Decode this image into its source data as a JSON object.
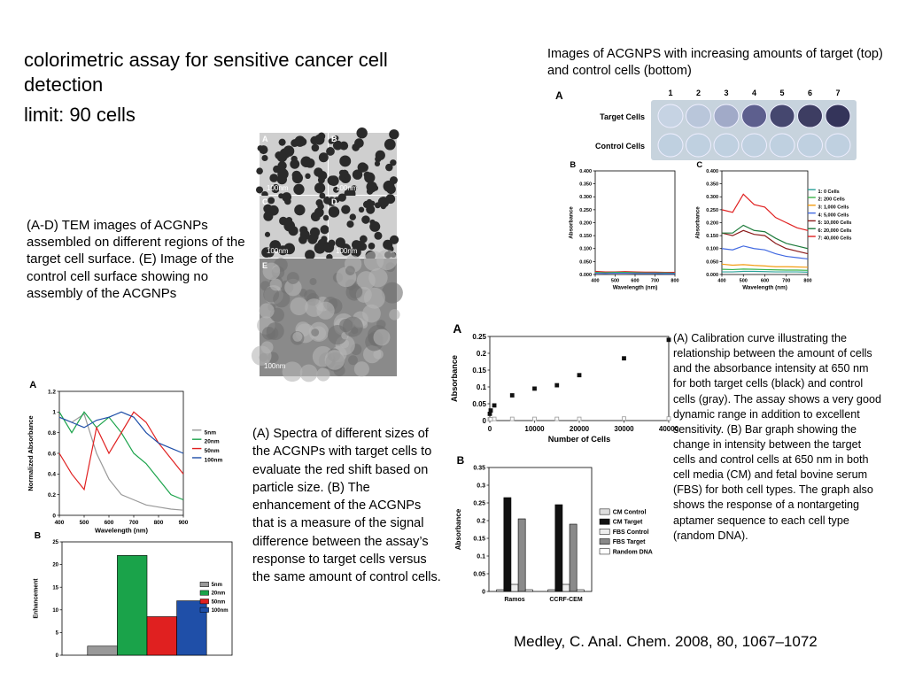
{
  "title": "colorimetric assay for sensitive cancer cell detection",
  "subtitle": "limit: 90 cells",
  "tem": {
    "caption": "(A-D) TEM images of ACGNPs assembled on different regions of the target cell surface. (E) Image of the control cell surface showing no assembly of the ACGNPs",
    "panels": [
      "A",
      "B",
      "C",
      "D",
      "E"
    ],
    "scale_label": "100nm"
  },
  "plate": {
    "caption": "Images of ACGNPS with increasing amounts of target (top) and control cells (bottom)",
    "panel": "A",
    "columns": [
      "1",
      "2",
      "3",
      "4",
      "5",
      "6",
      "7"
    ],
    "rows": [
      "Target Cells",
      "Control Cells"
    ]
  },
  "calibration_caption": "(A) Calibration curve illustrating the relationship between the amount of cells and the absorbance intensity at 650 nm for both target cells (black) and control cells (gray). The assay shows a very good dynamic range in addition to excellent sensitivity. (B) Bar graph showing the change in intensity between the target cells and control cells at 650 nm in both cell media (CM) and fetal bovine serum (FBS) for both cell types. The graph also shows the response of a nontargeting aptamer sequence to each cell type (random DNA).",
  "size_caption": "(A) Spectra of different sizes of the ACGNPs with target cells to evaluate the red shift based on particle size. (B) The enhancement of the ACGNPs that is a measure of the signal difference between the assay’s response to target cells versus the same amount of control cells.",
  "citation": "Medley, C. Anal. Chem. 2008, 80, 1067–1072",
  "chart_data": [
    {
      "type": "line",
      "panel": "B",
      "ylabel": "Absorbance",
      "xlabel": "Wavelength (nm)",
      "x": [
        400,
        450,
        500,
        550,
        600,
        650,
        700,
        750,
        800
      ],
      "xlim": [
        400,
        800
      ],
      "xticks": [
        400,
        500,
        600,
        700,
        800
      ],
      "ylim": [
        0,
        0.4
      ],
      "yticks": [
        {
          "value": 0,
          "label": "0.000"
        },
        {
          "value": 0.05,
          "label": "0.050"
        },
        {
          "value": 0.1,
          "label": "0.100"
        },
        {
          "value": 0.15,
          "label": "0.150"
        },
        {
          "value": 0.2,
          "label": "0.200"
        },
        {
          "value": 0.25,
          "label": "0.250"
        },
        {
          "value": 0.3,
          "label": "0.300"
        },
        {
          "value": 0.35,
          "label": "0.350"
        },
        {
          "value": 0.4,
          "label": "0.400"
        }
      ],
      "series": [
        {
          "color": "#e02020",
          "values": [
            0.012,
            0.01,
            0.01,
            0.011,
            0.01,
            0.009,
            0.009,
            0.008,
            0.008
          ]
        },
        {
          "color": "#3cb44b",
          "values": [
            0.008,
            0.007,
            0.008,
            0.008,
            0.007,
            0.006,
            0.006,
            0.006,
            0.005
          ]
        },
        {
          "color": "#4169e1",
          "values": [
            0.005,
            0.004,
            0.005,
            0.005,
            0.004,
            0.004,
            0.004,
            0.003,
            0.003
          ]
        }
      ]
    },
    {
      "type": "line",
      "panel": "C",
      "ylabel": "Absorbance",
      "xlabel": "Wavelength (nm)",
      "x": [
        400,
        450,
        500,
        550,
        600,
        650,
        700,
        750,
        800
      ],
      "xlim": [
        400,
        800
      ],
      "xticks": [
        400,
        500,
        600,
        700,
        800
      ],
      "ylim": [
        0,
        0.4
      ],
      "yticks": [
        {
          "value": 0,
          "label": "0.000"
        },
        {
          "value": 0.05,
          "label": "0.050"
        },
        {
          "value": 0.1,
          "label": "0.100"
        },
        {
          "value": 0.15,
          "label": "0.150"
        },
        {
          "value": 0.2,
          "label": "0.200"
        },
        {
          "value": 0.25,
          "label": "0.250"
        },
        {
          "value": 0.3,
          "label": "0.300"
        },
        {
          "value": 0.35,
          "label": "0.350"
        },
        {
          "value": 0.4,
          "label": "0.400"
        }
      ],
      "series": [
        {
          "name": "1: 0 Cells",
          "color": "#2aa198",
          "values": [
            0.01,
            0.01,
            0.012,
            0.012,
            0.011,
            0.01,
            0.01,
            0.01,
            0.009
          ]
        },
        {
          "name": "2: 200 Cells",
          "color": "#3cb44b",
          "values": [
            0.02,
            0.019,
            0.021,
            0.02,
            0.019,
            0.018,
            0.017,
            0.017,
            0.016
          ]
        },
        {
          "name": "3: 1,000 Cells",
          "color": "#f39c12",
          "values": [
            0.04,
            0.036,
            0.038,
            0.035,
            0.033,
            0.03,
            0.03,
            0.029,
            0.028
          ]
        },
        {
          "name": "4: 5,000 Cells",
          "color": "#4169e1",
          "values": [
            0.1,
            0.095,
            0.11,
            0.1,
            0.095,
            0.08,
            0.07,
            0.065,
            0.06
          ]
        },
        {
          "name": "5: 10,000 Cells",
          "color": "#8b1a1a",
          "values": [
            0.16,
            0.15,
            0.17,
            0.155,
            0.15,
            0.12,
            0.1,
            0.09,
            0.08
          ]
        },
        {
          "name": "6: 20,000 Cells",
          "color": "#1e7b3c",
          "values": [
            0.16,
            0.16,
            0.19,
            0.17,
            0.165,
            0.14,
            0.12,
            0.11,
            0.1
          ]
        },
        {
          "name": "7: 40,000 Cells",
          "color": "#e02020",
          "values": [
            0.25,
            0.24,
            0.31,
            0.27,
            0.26,
            0.22,
            0.2,
            0.18,
            0.17
          ]
        }
      ]
    },
    {
      "type": "scatter",
      "panel": "A",
      "ylabel": "Absorbance",
      "xlabel": "Number of Cells",
      "x": [
        0,
        200,
        1000,
        5000,
        10000,
        15000,
        20000,
        30000,
        40000
      ],
      "xlim": [
        0,
        40000
      ],
      "xticks": [
        0,
        10000,
        20000,
        30000,
        40000
      ],
      "ylim": [
        0,
        0.25
      ],
      "yticks": [
        0,
        0.05,
        0.1,
        0.15,
        0.2,
        0.25
      ],
      "series": [
        {
          "color": "#111111",
          "values": [
            0.02,
            0.03,
            0.045,
            0.075,
            0.095,
            0.105,
            0.135,
            0.185,
            0.24
          ]
        },
        {
          "color": "#999999",
          "values": [
            0.004,
            0.004,
            0.005,
            0.005,
            0.005,
            0.005,
            0.005,
            0.006,
            0.006
          ]
        }
      ]
    },
    {
      "type": "bar",
      "panel": "B",
      "ylabel": "Absorbance",
      "categories": [
        "Ramos",
        "CCRF-CEM"
      ],
      "ylim": [
        0,
        0.35
      ],
      "yticks": [
        0,
        0.05,
        0.1,
        0.15,
        0.2,
        0.25,
        0.3,
        0.35
      ],
      "series": [
        {
          "name": "CM Control",
          "color": "#dddddd",
          "values": [
            0.005,
            0.005
          ]
        },
        {
          "name": "CM Target",
          "color": "#111111",
          "values": [
            0.265,
            0.245
          ]
        },
        {
          "name": "FBS Control",
          "color": "#eeeeee",
          "values": [
            0.02,
            0.02
          ]
        },
        {
          "name": "FBS Target",
          "color": "#8a8a8a",
          "values": [
            0.205,
            0.19
          ]
        },
        {
          "name": "Random DNA",
          "color": "#ffffff",
          "values": [
            0.005,
            0.005
          ]
        }
      ]
    },
    {
      "type": "line",
      "panel": "A",
      "ylabel": "Normalized Absorbance",
      "xlabel": "Wavelength (nm)",
      "x": [
        400,
        450,
        500,
        550,
        600,
        650,
        700,
        750,
        800,
        850,
        900
      ],
      "xlim": [
        400,
        900
      ],
      "xticks": [
        400,
        500,
        600,
        700,
        800,
        900
      ],
      "ylim": [
        0,
        1.2
      ],
      "yticks": [
        0,
        0.2,
        0.4,
        0.6,
        0.8,
        1,
        1.2
      ],
      "series": [
        {
          "name": "5nm",
          "color": "#999999",
          "values": [
            0.95,
            0.9,
            0.98,
            0.6,
            0.35,
            0.2,
            0.15,
            0.1,
            0.08,
            0.06,
            0.05
          ]
        },
        {
          "name": "20nm",
          "color": "#1aa34a",
          "values": [
            1,
            0.8,
            1,
            0.85,
            0.95,
            0.8,
            0.6,
            0.5,
            0.35,
            0.2,
            0.15
          ]
        },
        {
          "name": "50nm",
          "color": "#e02020",
          "values": [
            0.6,
            0.4,
            0.25,
            0.85,
            0.6,
            0.8,
            1,
            0.9,
            0.7,
            0.55,
            0.4
          ]
        },
        {
          "name": "100nm",
          "color": "#1f4fa8",
          "values": [
            0.95,
            0.9,
            0.85,
            0.92,
            0.95,
            1,
            0.95,
            0.8,
            0.7,
            0.65,
            0.6
          ]
        }
      ]
    },
    {
      "type": "bar",
      "panel": "B",
      "ylabel": "Enhancement",
      "categories": [
        null
      ],
      "ylim": [
        0,
        25
      ],
      "yticks": [
        0,
        5,
        10,
        15,
        20,
        25
      ],
      "series": [
        {
          "name": "5nm",
          "color": "#999999",
          "values": [
            2
          ]
        },
        {
          "name": "20nm",
          "color": "#1aa34a",
          "values": [
            22
          ]
        },
        {
          "name": "50nm",
          "color": "#e02020",
          "values": [
            8.5
          ]
        },
        {
          "name": "100nm",
          "color": "#1f4fa8",
          "values": [
            12
          ]
        }
      ]
    }
  ]
}
